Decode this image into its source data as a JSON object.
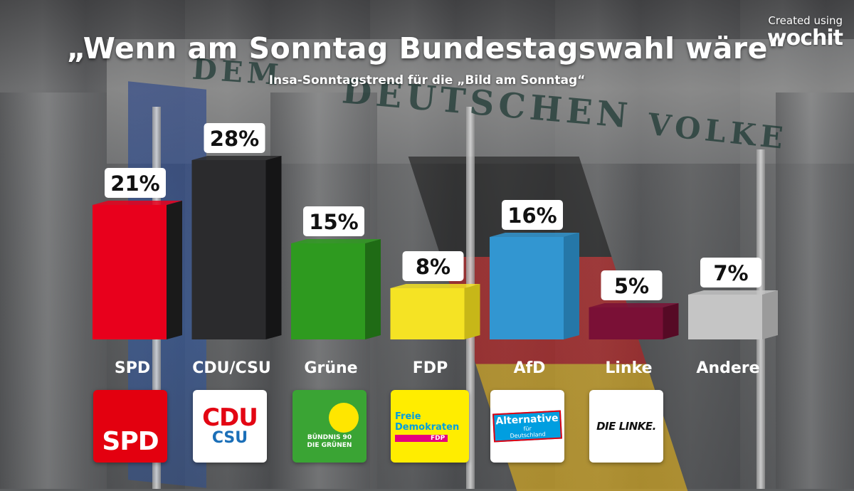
{
  "header": {
    "title": "„Wenn am Sonntag Bundestagswahl wäre“",
    "subtitle": "Insa-Sonntagstrend für die „Bild am Sonntag“"
  },
  "watermark": {
    "prefix": "Created using",
    "brand": "wochit"
  },
  "background_text": {
    "line1": "DEM",
    "line2": "DEUTSCHEN",
    "line3": "VOLKE"
  },
  "chart_data": {
    "type": "bar",
    "title": "„Wenn am Sonntag Bundestagswahl wäre“",
    "subtitle": "Insa-Sonntagstrend für die „Bild am Sonntag“",
    "xlabel": "",
    "ylabel": "",
    "unit": "%",
    "categories": [
      "SPD",
      "CDU/CSU",
      "Grüne",
      "FDP",
      "AfD",
      "Linke",
      "Andere"
    ],
    "values": [
      21,
      28,
      15,
      8,
      16,
      5,
      7
    ],
    "labels": [
      "21%",
      "28%",
      "15%",
      "8%",
      "16%",
      "5%",
      "7%"
    ],
    "colors": [
      "#e8001c",
      "#2b2b2d",
      "#2e9a1f",
      "#f5e324",
      "#3296d1",
      "#7a1036",
      "#c5c5c5"
    ],
    "side_colors": [
      "#1a1a1a",
      "#151516",
      "#1f6b15",
      "#c7b718",
      "#2577a8",
      "#560a25",
      "#9b9b9b"
    ],
    "grid": false,
    "legend": "none"
  },
  "logos": [
    {
      "party": "SPD",
      "name": "spd-logo",
      "text": "SPD"
    },
    {
      "party": "CDU/CSU",
      "name": "cdu-csu-logo",
      "line1": "CDU",
      "line2": "CSU"
    },
    {
      "party": "Grüne",
      "name": "gruene-logo",
      "line1": "BÜNDNIS 90",
      "line2": "DIE GRÜNEN"
    },
    {
      "party": "FDP",
      "name": "fdp-logo",
      "line1": "Freie",
      "line2": "Demokraten",
      "line3": "FDP"
    },
    {
      "party": "AfD",
      "name": "afd-logo",
      "line1": "Alternative",
      "line2": "für",
      "line3": "Deutschland"
    },
    {
      "party": "Linke",
      "name": "linke-logo",
      "text": "DIE LINKE."
    }
  ]
}
